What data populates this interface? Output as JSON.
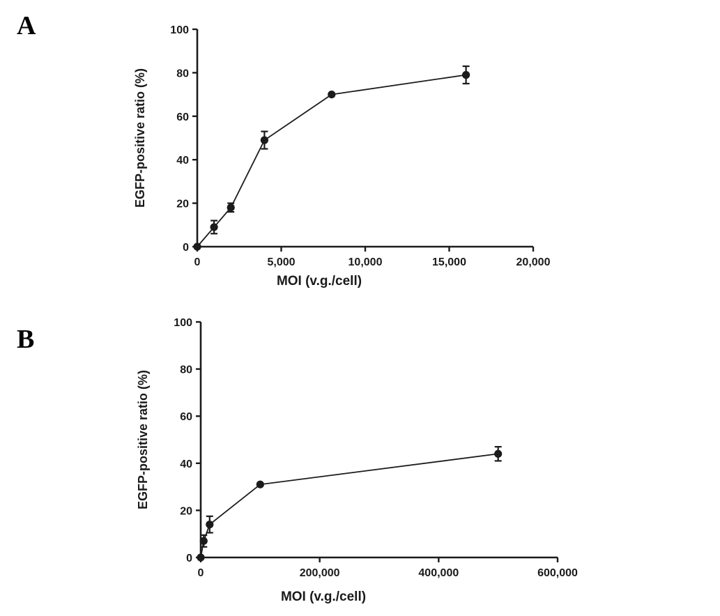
{
  "panels": [
    {
      "label": "A"
    },
    {
      "label": "B"
    }
  ],
  "chart_data": [
    {
      "panel": "A",
      "type": "line",
      "x": [
        0,
        1000,
        2000,
        4000,
        8000,
        16000
      ],
      "y": [
        0,
        9,
        18,
        49,
        70,
        79
      ],
      "yerr": [
        0,
        3,
        2,
        4,
        1,
        4
      ],
      "xlabel": "MOI (v.g./cell)",
      "ylabel": "EGFP-positive ratio (%)",
      "xlim": [
        0,
        20000
      ],
      "ylim": [
        0,
        100
      ],
      "xtick_values": [
        0,
        5000,
        10000,
        15000,
        20000
      ],
      "xtick_labels": [
        "0",
        "5,000",
        "10,000",
        "15,000",
        "20,000"
      ],
      "ytick_values": [
        0,
        20,
        40,
        60,
        80,
        100
      ],
      "ytick_labels": [
        "0",
        "20",
        "40",
        "60",
        "80",
        "100"
      ],
      "marker": "filled-circle",
      "errorbars": "vertical-with-caps",
      "color": "#1b1b1b",
      "grid": false,
      "legend": null
    },
    {
      "panel": "B",
      "type": "line",
      "x": [
        0,
        5000,
        15000,
        100000,
        500000
      ],
      "y": [
        0,
        7,
        14,
        31,
        44
      ],
      "yerr": [
        1,
        2.5,
        3.5,
        1,
        3
      ],
      "xlabel": "MOI (v.g./cell)",
      "ylabel": "EGFP-positive ratio  (%)",
      "xlim": [
        0,
        600000
      ],
      "ylim": [
        0,
        100
      ],
      "xtick_values": [
        0,
        200000,
        400000,
        600000
      ],
      "xtick_labels": [
        "0",
        "200,000",
        "400,000",
        "600,000"
      ],
      "ytick_values": [
        0,
        20,
        40,
        60,
        80,
        100
      ],
      "ytick_labels": [
        "0",
        "20",
        "40",
        "60",
        "80",
        "100"
      ],
      "marker": "filled-circle",
      "errorbars": "vertical-with-caps",
      "color": "#1b1b1b",
      "grid": false,
      "legend": null
    }
  ]
}
